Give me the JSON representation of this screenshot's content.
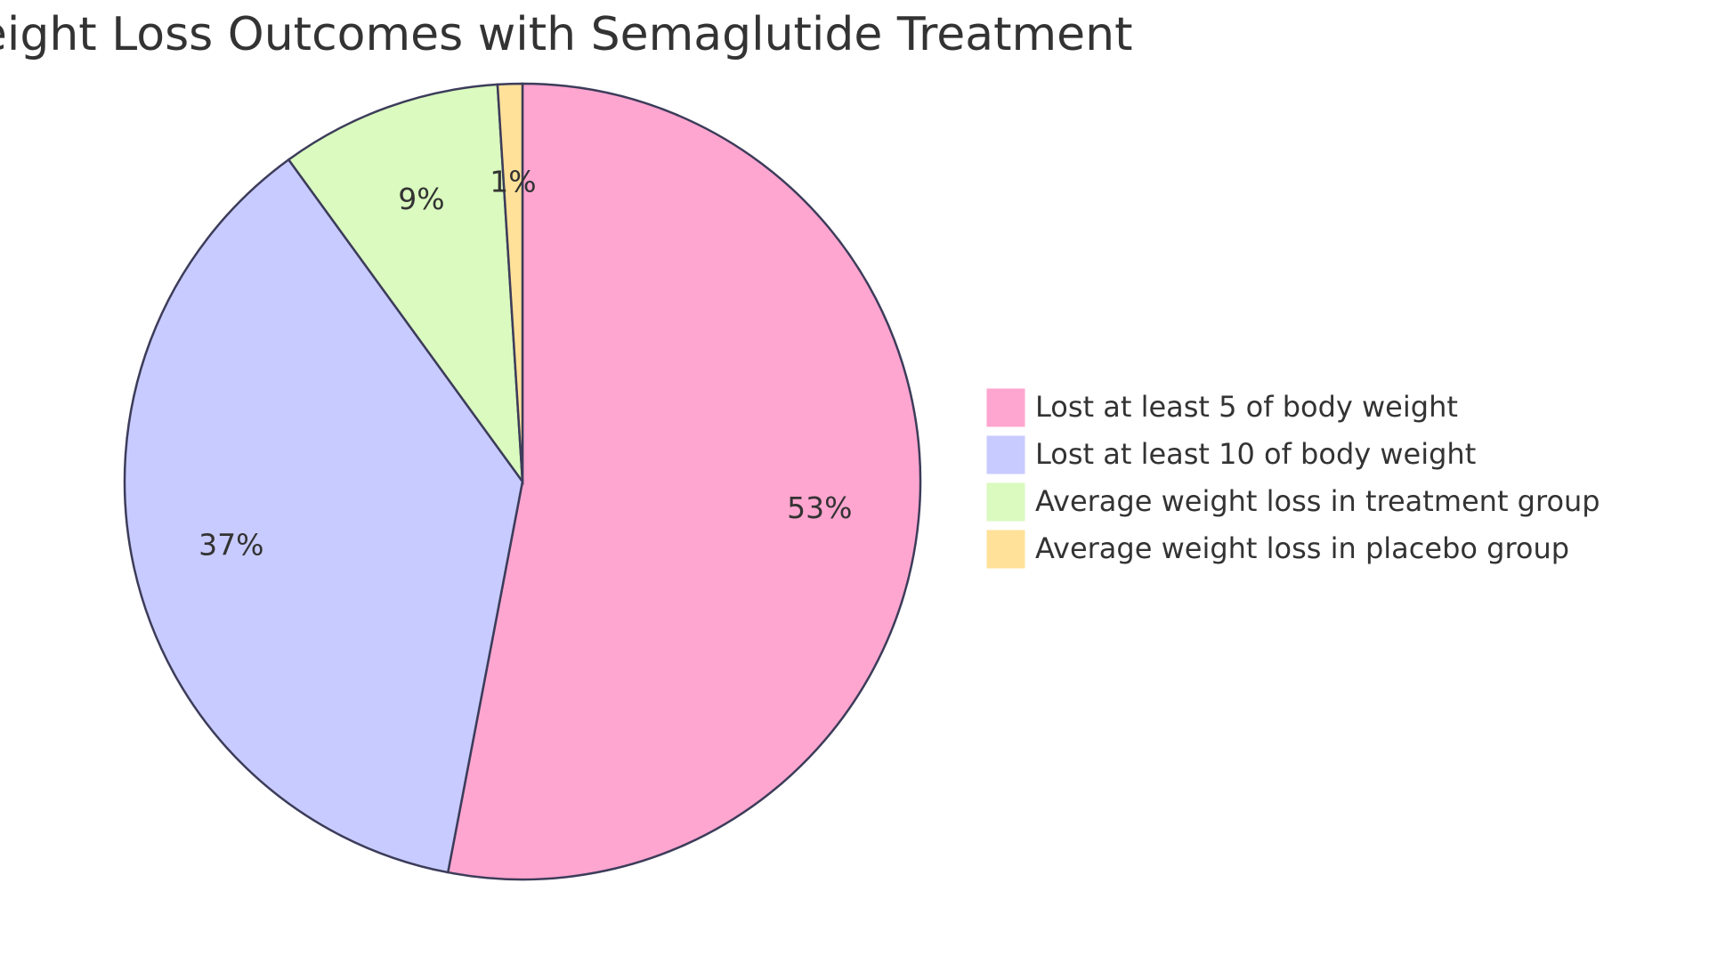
{
  "chart_data": {
    "type": "pie",
    "title": "Weight Loss Outcomes with Semaglutide Treatment",
    "categories": [
      "Lost at least 5 of body weight",
      "Lost at least 10 of body weight",
      "Average weight loss in treatment group",
      "Average weight loss in placebo group"
    ],
    "values": [
      53,
      37,
      9,
      1
    ],
    "value_labels": [
      "53%",
      "37%",
      "9%",
      "1%"
    ],
    "colors": [
      "#ffa6d0",
      "#c8cbff",
      "#dafabf",
      "#ffe199"
    ]
  }
}
